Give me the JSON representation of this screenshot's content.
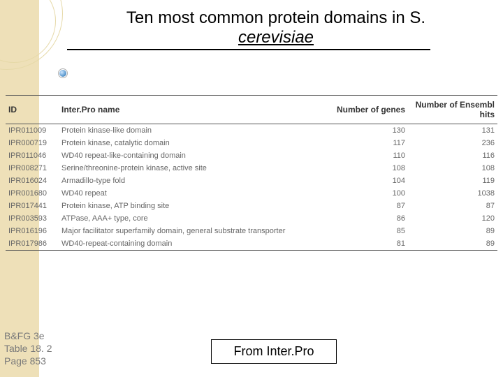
{
  "title": {
    "line1": "Ten most common protein domains in S.",
    "line2": "cerevisiae"
  },
  "table": {
    "columns": [
      "ID",
      "Inter.Pro name",
      "Number of genes",
      "Number of Ensembl hits"
    ],
    "col_align": [
      "left",
      "left",
      "right",
      "right"
    ],
    "rows": [
      [
        "IPR011009",
        "Protein kinase-like domain",
        "130",
        "131"
      ],
      [
        "IPR000719",
        "Protein kinase, catalytic domain",
        "117",
        "236"
      ],
      [
        "IPR011046",
        "WD40 repeat-like-containing domain",
        "110",
        "116"
      ],
      [
        "IPR008271",
        "Serine/threonine-protein kinase, active site",
        "108",
        "108"
      ],
      [
        "IPR016024",
        "Armadillo-type fold",
        "104",
        "119"
      ],
      [
        "IPR001680",
        "WD40 repeat",
        "100",
        "1038"
      ],
      [
        "IPR017441",
        "Protein kinase, ATP binding site",
        "87",
        "87"
      ],
      [
        "IPR003593",
        "ATPase, AAA+ type, core",
        "86",
        "120"
      ],
      [
        "IPR016196",
        "Major facilitator superfamily domain, general substrate transporter",
        "85",
        "89"
      ],
      [
        "IPR017986",
        "WD40-repeat-containing domain",
        "81",
        "89"
      ]
    ],
    "header_border_color": "#555555",
    "text_color": "#666666",
    "header_fontsize": 12,
    "body_fontsize": 11
  },
  "footer": {
    "ref_line1": "B&FG 3e",
    "ref_line2": "Table 18. 2",
    "ref_line3": "Page 853",
    "source": "From Inter.Pro"
  },
  "styling": {
    "left_band_color": "#eee0b8",
    "circle_outline_color": "#e6d9a8",
    "background_color": "#ffffff",
    "title_fontsize": 24,
    "footer_ref_color": "#7a7a7a",
    "source_box_border": "#000000"
  }
}
